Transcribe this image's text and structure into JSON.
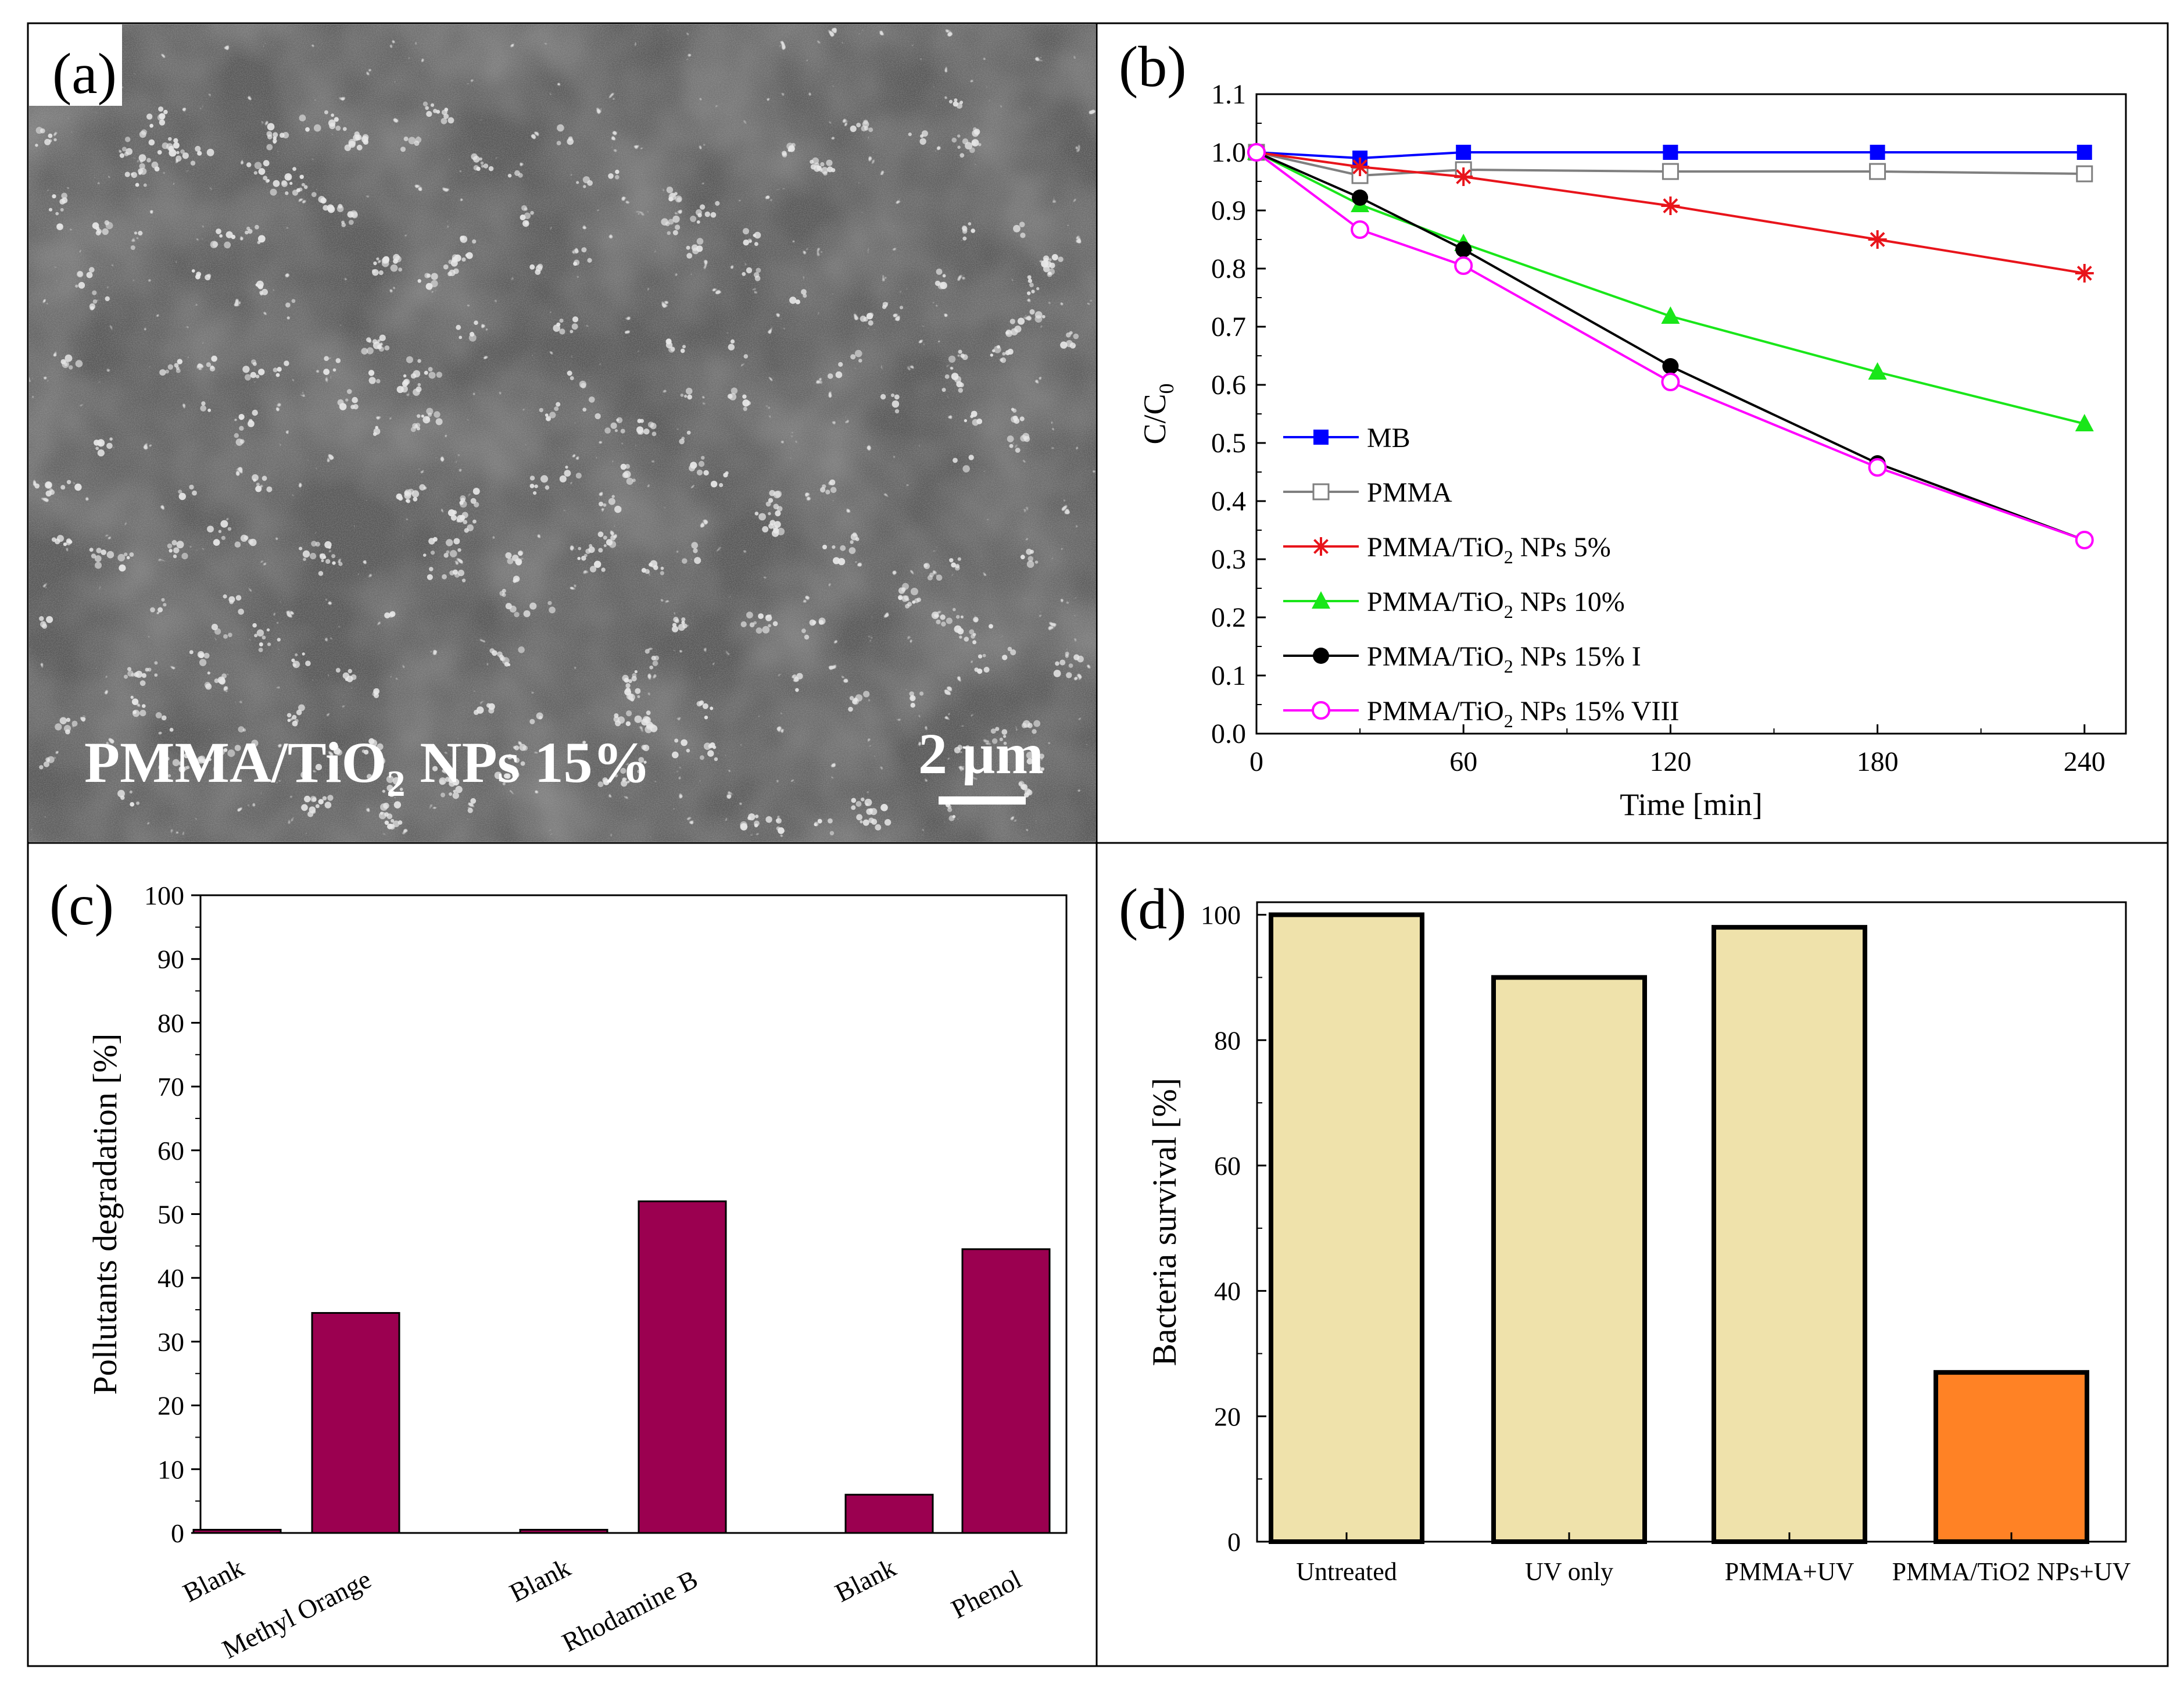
{
  "panel_a": {
    "label": "(a)",
    "caption_main": "PMMA/TiO",
    "caption_sub": "2",
    "caption_end": " NPs 15%",
    "scale_text": "2 µm"
  },
  "chart_data": [
    {
      "panel": "(b)",
      "type": "line",
      "xlabel": "Time [min]",
      "ylabel": "C/C",
      "ylabel_sub": "0",
      "xlim": [
        0,
        252
      ],
      "ylim": [
        0,
        1.1
      ],
      "xticks": [
        0,
        60,
        120,
        180,
        240
      ],
      "yticks": [
        0.0,
        0.1,
        0.2,
        0.3,
        0.4,
        0.5,
        0.6,
        0.7,
        0.8,
        0.9,
        1.0,
        1.1
      ],
      "x": [
        0,
        30,
        60,
        120,
        180,
        240
      ],
      "legend_position": "bottom-left",
      "series": [
        {
          "name": "MB",
          "label_parts": [
            "MB"
          ],
          "color": "#0000ff",
          "marker": "square-filled",
          "values": [
            1.0,
            0.99,
            1.0,
            1.0,
            1.0,
            1.0
          ]
        },
        {
          "name": "PMMA",
          "label_parts": [
            "PMMA"
          ],
          "color": "#7f7f7f",
          "marker": "square-open",
          "values": [
            1.0,
            0.96,
            0.97,
            0.967,
            0.967,
            0.963
          ]
        },
        {
          "name": "PMMA/TiO2 NPs 5%",
          "label_parts": [
            "PMMA/TiO",
            "2",
            " NPs 5%"
          ],
          "color": "#e8141b",
          "marker": "star",
          "values": [
            1.0,
            0.975,
            0.958,
            0.908,
            0.85,
            0.792
          ]
        },
        {
          "name": "PMMA/TiO2 NPs 10%",
          "label_parts": [
            "PMMA/TiO",
            "2",
            " NPs 10%"
          ],
          "color": "#19e619",
          "marker": "triangle",
          "values": [
            1.0,
            0.91,
            0.843,
            0.718,
            0.622,
            0.533
          ]
        },
        {
          "name": "PMMA/TiO2 NPs 15% I",
          "label_parts": [
            "PMMA/TiO",
            "2",
            " NPs 15% I"
          ],
          "color": "#000000",
          "marker": "circle-filled",
          "values": [
            1.0,
            0.922,
            0.833,
            0.632,
            0.465,
            0.333
          ]
        },
        {
          "name": "PMMA/TiO2 NPs 15% VIII",
          "label_parts": [
            "PMMA/TiO",
            "2",
            " NPs 15% VIII"
          ],
          "color": "#ff00ff",
          "marker": "circle-open",
          "values": [
            1.0,
            0.867,
            0.805,
            0.605,
            0.458,
            0.333
          ]
        }
      ]
    },
    {
      "panel": "(c)",
      "type": "bar",
      "xlabel": "",
      "ylabel": "Pollutants degradation [%]",
      "ylim": [
        0,
        100
      ],
      "yticks": [
        0,
        10,
        20,
        30,
        40,
        50,
        60,
        70,
        80,
        90,
        100
      ],
      "bar_color": "#9b0050",
      "categories": [
        "Blank",
        "Methyl Orange",
        "Blank",
        "Rhodamine B",
        "Blank",
        "Phenol"
      ],
      "values": [
        0.5,
        34.5,
        0.5,
        52.0,
        6.0,
        44.5
      ]
    },
    {
      "panel": "(d)",
      "type": "bar",
      "xlabel": "",
      "ylabel": "Bacteria survival [%]",
      "ylim": [
        0,
        102
      ],
      "yticks": [
        0,
        20,
        40,
        60,
        80,
        100
      ],
      "categories": [
        "Untreated",
        "UV only",
        "PMMA+UV",
        "PMMA/TiO2 NPs+UV"
      ],
      "values": [
        100,
        90,
        98,
        27
      ],
      "colors": [
        "#efe2ab",
        "#efe2ab",
        "#efe2ab",
        "#ff8225"
      ]
    }
  ]
}
